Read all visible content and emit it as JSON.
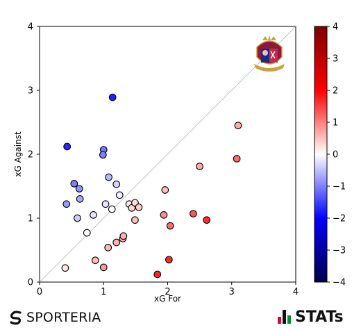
{
  "chart_data": {
    "type": "scatter",
    "xlabel": "xG For",
    "ylabel": "xG Against",
    "xlim": [
      0,
      4
    ],
    "ylim": [
      0,
      4
    ],
    "xticks": [
      "0",
      "1",
      "2",
      "3",
      "4"
    ],
    "yticks": [
      "0",
      "1",
      "2",
      "3",
      "4"
    ],
    "diagonal": true,
    "grid": false,
    "colorbar": {
      "range": [
        -4,
        4
      ],
      "ticks": [
        "4",
        "3",
        "2",
        "1",
        "0",
        "−1",
        "−2",
        "−3",
        "−4"
      ],
      "colormap": "seismic",
      "value": "xG For - xG Against"
    },
    "points": [
      {
        "x": 1.14,
        "y": 2.89
      },
      {
        "x": 0.43,
        "y": 2.12
      },
      {
        "x": 1.0,
        "y": 2.07
      },
      {
        "x": 0.99,
        "y": 1.99
      },
      {
        "x": 1.08,
        "y": 1.64
      },
      {
        "x": 0.54,
        "y": 1.54
      },
      {
        "x": 0.62,
        "y": 1.46
      },
      {
        "x": 1.2,
        "y": 1.53
      },
      {
        "x": 0.63,
        "y": 1.3
      },
      {
        "x": 1.25,
        "y": 1.36
      },
      {
        "x": 0.42,
        "y": 1.22
      },
      {
        "x": 1.03,
        "y": 1.22
      },
      {
        "x": 1.13,
        "y": 1.14
      },
      {
        "x": 1.4,
        "y": 1.22
      },
      {
        "x": 1.44,
        "y": 1.16
      },
      {
        "x": 1.49,
        "y": 1.24
      },
      {
        "x": 1.55,
        "y": 1.17
      },
      {
        "x": 0.59,
        "y": 1.0
      },
      {
        "x": 0.84,
        "y": 1.05
      },
      {
        "x": 1.49,
        "y": 0.97
      },
      {
        "x": 0.74,
        "y": 0.77
      },
      {
        "x": 1.3,
        "y": 0.68
      },
      {
        "x": 1.31,
        "y": 0.72
      },
      {
        "x": 1.2,
        "y": 0.62
      },
      {
        "x": 1.07,
        "y": 0.54
      },
      {
        "x": 0.87,
        "y": 0.34
      },
      {
        "x": 0.4,
        "y": 0.22
      },
      {
        "x": 1.0,
        "y": 0.23
      },
      {
        "x": 1.96,
        "y": 1.44
      },
      {
        "x": 1.94,
        "y": 1.05
      },
      {
        "x": 2.04,
        "y": 0.88
      },
      {
        "x": 2.4,
        "y": 1.07
      },
      {
        "x": 2.61,
        "y": 0.97
      },
      {
        "x": 2.5,
        "y": 1.81
      },
      {
        "x": 3.08,
        "y": 1.93
      },
      {
        "x": 3.1,
        "y": 2.45
      },
      {
        "x": 2.02,
        "y": 0.35
      },
      {
        "x": 1.84,
        "y": 0.12
      }
    ]
  },
  "footer": {
    "left_brand": "SPORTERIA",
    "right_brand": "STATs"
  }
}
